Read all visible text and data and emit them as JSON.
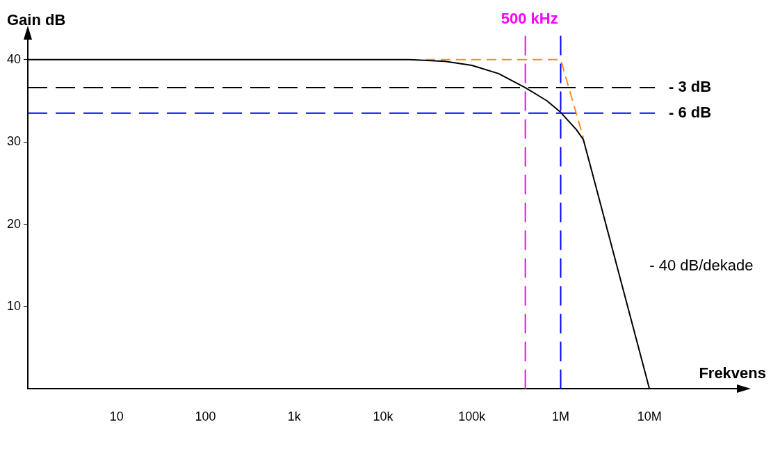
{
  "chart_data": {
    "type": "line",
    "xlabel": "Frekvens",
    "ylabel": "Gain dB",
    "log": "x",
    "xlim": [
      1,
      100000000
    ],
    "ylim": [
      0,
      42.6
    ],
    "xticks": [
      {
        "value": 10,
        "label": "10"
      },
      {
        "value": 100,
        "label": "100"
      },
      {
        "value": 1000,
        "label": "1k"
      },
      {
        "value": 10000,
        "label": "10k"
      },
      {
        "value": 100000,
        "label": "100k"
      },
      {
        "value": 1000000,
        "label": "1M"
      },
      {
        "value": 10000000,
        "label": "10M"
      }
    ],
    "yticks": [
      10,
      20,
      30,
      40
    ],
    "grid": false,
    "legend": false,
    "marker": "none",
    "series": [
      {
        "color": "#000000",
        "line_style": "solid",
        "x": [
          1,
          20000,
          50000,
          100000,
          200000,
          400000,
          700000,
          1000000,
          1500000,
          1800000,
          2300000,
          10000000
        ],
        "values": [
          40,
          40,
          39.8,
          39.3,
          38.3,
          36.6,
          35,
          33.6,
          31.5,
          30.3,
          26,
          0
        ]
      },
      {
        "color": "#ff8c1a",
        "line_style": "dashed",
        "x": [
          30000,
          1000000,
          1800000
        ],
        "values": [
          40,
          40,
          30.5
        ]
      }
    ],
    "ref_lines": [
      {
        "axis": "x",
        "value": 400000,
        "label": "500 kHz",
        "color": "#ff00ff",
        "line_style": "dashed"
      },
      {
        "axis": "x",
        "value": 1000000,
        "color": "#0000ff",
        "line_style": "dashed"
      },
      {
        "axis": "y",
        "value": 36.6,
        "label": "- 3 dB",
        "color": "#000000",
        "line_style": "dashed"
      },
      {
        "axis": "y",
        "value": 33.5,
        "label": "- 6 dB",
        "color": "#0000ff",
        "line_style": "dashed"
      }
    ],
    "annotations": [
      "- 40 dB/dekade"
    ]
  }
}
